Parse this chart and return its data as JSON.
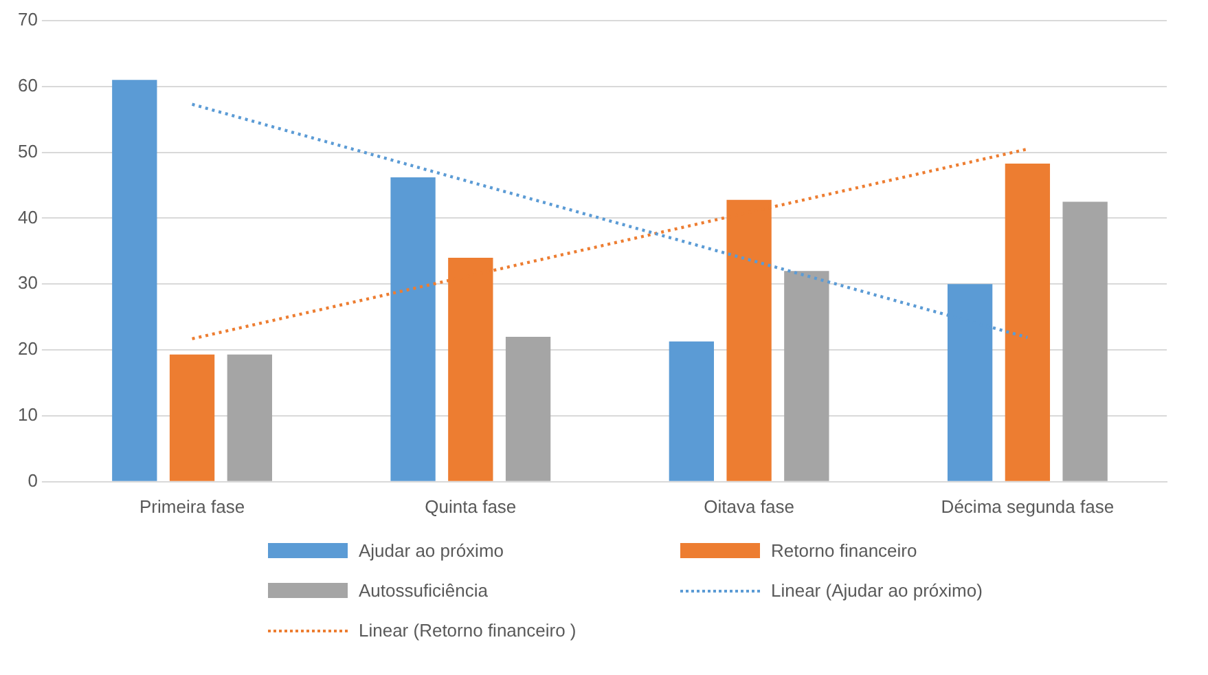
{
  "chart_data": {
    "type": "bar",
    "categories": [
      "Primeira fase",
      "Quinta fase",
      "Oitava fase",
      "Décima segunda fase"
    ],
    "series": [
      {
        "name": "Ajudar ao próximo",
        "color": "#5b9bd5",
        "values": [
          61,
          46.2,
          21.3,
          30
        ]
      },
      {
        "name": "Retorno financeiro",
        "color": "#ed7d31",
        "values": [
          19.3,
          34,
          42.8,
          48.3
        ]
      },
      {
        "name": "Autossuficiência",
        "color": "#a5a5a5",
        "values": [
          19.3,
          22,
          32,
          42.5
        ]
      },
      {
        "name": "Linear (Ajudar ao próximo)",
        "type": "line",
        "color": "#5b9bd5",
        "line_style": "dotted",
        "marker": "none",
        "values": [
          57.3,
          45.5,
          33.7,
          21.9
        ]
      },
      {
        "name": "Linear (Retorno financeiro )",
        "type": "line",
        "color": "#ed7d31",
        "line_style": "dotted",
        "marker": "none",
        "values": [
          21.7,
          31.3,
          40.9,
          50.5
        ]
      }
    ],
    "ylim": [
      0,
      70
    ],
    "yticks": [
      0,
      10,
      20,
      30,
      40,
      50,
      60,
      70
    ],
    "grid": "y",
    "legend": "bottom"
  }
}
